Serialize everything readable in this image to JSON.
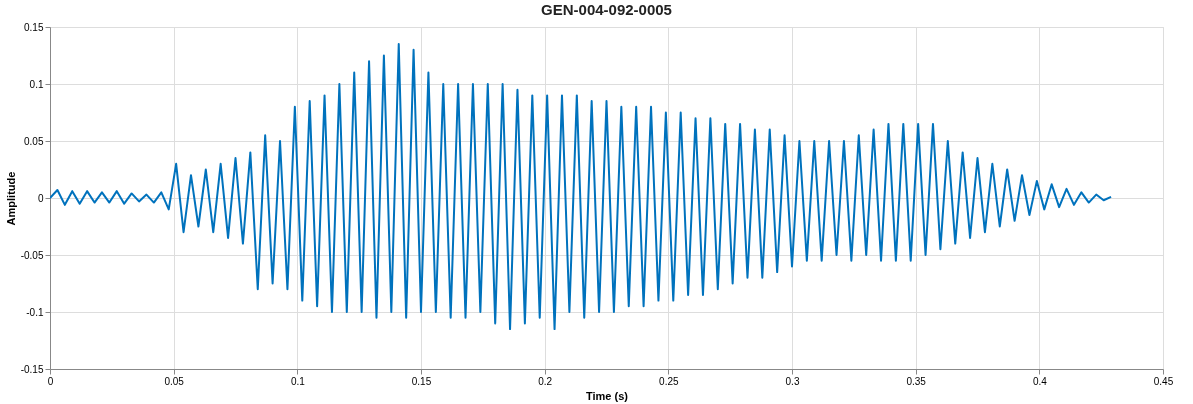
{
  "chart_data": {
    "type": "line",
    "title": "GEN-004-092-0005",
    "xlabel": "Time (s)",
    "ylabel": "Amplitude",
    "x": [
      0.0,
      0.003,
      0.006,
      0.009,
      0.012,
      0.015,
      0.018,
      0.021,
      0.024,
      0.027,
      0.03,
      0.033,
      0.036,
      0.039,
      0.042,
      0.045,
      0.048,
      0.051,
      0.054,
      0.057,
      0.06,
      0.063,
      0.066,
      0.069,
      0.072,
      0.075,
      0.078,
      0.081,
      0.084,
      0.087,
      0.09,
      0.093,
      0.096,
      0.099,
      0.102,
      0.105,
      0.108,
      0.111,
      0.114,
      0.117,
      0.12,
      0.123,
      0.126,
      0.129,
      0.132,
      0.135,
      0.138,
      0.141,
      0.144,
      0.147,
      0.15,
      0.153,
      0.156,
      0.159,
      0.162,
      0.165,
      0.168,
      0.171,
      0.174,
      0.177,
      0.18,
      0.183,
      0.186,
      0.189,
      0.192,
      0.195,
      0.198,
      0.201,
      0.204,
      0.207,
      0.21,
      0.213,
      0.216,
      0.219,
      0.222,
      0.225,
      0.228,
      0.231,
      0.234,
      0.237,
      0.24,
      0.243,
      0.246,
      0.249,
      0.252,
      0.255,
      0.258,
      0.261,
      0.264,
      0.267,
      0.27,
      0.273,
      0.276,
      0.279,
      0.282,
      0.285,
      0.288,
      0.291,
      0.294,
      0.297,
      0.3,
      0.303,
      0.306,
      0.309,
      0.312,
      0.315,
      0.318,
      0.321,
      0.324,
      0.327,
      0.33,
      0.333,
      0.336,
      0.339,
      0.342,
      0.345,
      0.348,
      0.351,
      0.354,
      0.357,
      0.36,
      0.363,
      0.366,
      0.369,
      0.372,
      0.375,
      0.378,
      0.381,
      0.384,
      0.387,
      0.39,
      0.393,
      0.396,
      0.399,
      0.402,
      0.405,
      0.408,
      0.411,
      0.414,
      0.417,
      0.42,
      0.423,
      0.426,
      0.429
    ],
    "series": [
      {
        "color": "#0072bd",
        "values": [
          0,
          0.007,
          -0.006,
          0.006,
          -0.005,
          0.006,
          -0.004,
          0.005,
          -0.004,
          0.006,
          -0.005,
          0.004,
          -0.003,
          0.003,
          -0.004,
          0.005,
          -0.01,
          0.03,
          -0.03,
          0.02,
          -0.025,
          0.025,
          -0.03,
          0.03,
          -0.035,
          0.035,
          -0.04,
          0.04,
          -0.08,
          0.055,
          -0.075,
          0.05,
          -0.08,
          0.08,
          -0.09,
          0.085,
          -0.095,
          0.09,
          -0.1,
          0.1,
          -0.1,
          0.11,
          -0.1,
          0.12,
          -0.105,
          0.125,
          -0.1,
          0.135,
          -0.105,
          0.13,
          -0.1,
          0.11,
          -0.1,
          0.1,
          -0.105,
          0.1,
          -0.105,
          0.1,
          -0.1,
          0.1,
          -0.11,
          0.1,
          -0.115,
          0.095,
          -0.11,
          0.09,
          -0.105,
          0.09,
          -0.115,
          0.09,
          -0.1,
          0.09,
          -0.105,
          0.085,
          -0.1,
          0.085,
          -0.1,
          0.08,
          -0.095,
          0.08,
          -0.095,
          0.08,
          -0.09,
          0.075,
          -0.09,
          0.075,
          -0.085,
          0.07,
          -0.085,
          0.07,
          -0.08,
          0.065,
          -0.075,
          0.065,
          -0.07,
          0.06,
          -0.07,
          0.06,
          -0.065,
          0.055,
          -0.06,
          0.05,
          -0.055,
          0.05,
          -0.055,
          0.05,
          -0.05,
          0.05,
          -0.055,
          0.055,
          -0.05,
          0.06,
          -0.055,
          0.065,
          -0.055,
          0.065,
          -0.055,
          0.065,
          -0.05,
          0.065,
          -0.045,
          0.05,
          -0.04,
          0.04,
          -0.035,
          0.035,
          -0.03,
          0.03,
          -0.025,
          0.025,
          -0.02,
          0.02,
          -0.015,
          0.015,
          -0.01,
          0.012,
          -0.008,
          0.008,
          -0.006,
          0.005,
          -0.004,
          0.003,
          -0.002,
          0.001
        ]
      }
    ],
    "xlim": [
      0,
      0.45
    ],
    "xticks": [
      0,
      0.05,
      0.1,
      0.15,
      0.2,
      0.25,
      0.3,
      0.35,
      0.4,
      0.45
    ],
    "ylim": [
      -0.15,
      0.15
    ],
    "yticks": [
      -0.15,
      -0.1,
      -0.05,
      0,
      0.05,
      0.1,
      0.15
    ],
    "grid": true,
    "line_style": "solid"
  }
}
